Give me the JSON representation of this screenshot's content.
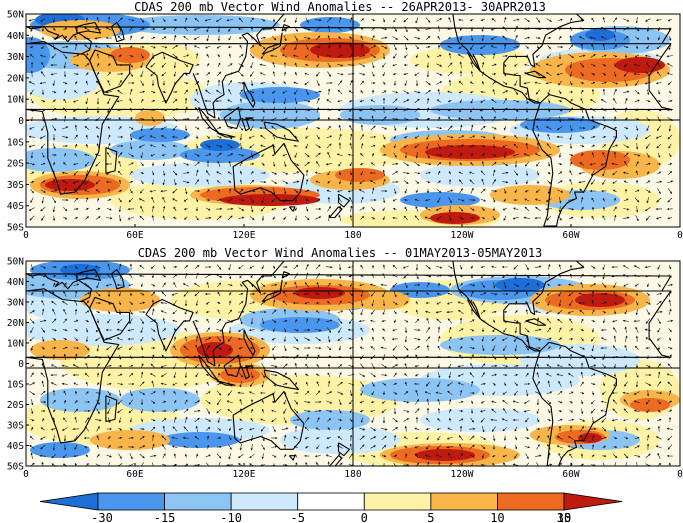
{
  "panels": [
    {
      "title": "CDAS 200 mb Vector Wind Anomalies -- 26APR2013- 30APR2013",
      "lat_labels": [
        "50N",
        "40N",
        "30N",
        "20N",
        "10N",
        "0",
        "10S",
        "20S",
        "30S",
        "40S",
        "50S"
      ],
      "lon_labels": [
        "0",
        "60E",
        "120E",
        "180",
        "120W",
        "60W",
        "0"
      ]
    },
    {
      "title": "CDAS 200 mb Vector Wind Anomalies -- 01MAY2013-05MAY2013",
      "lat_labels": [
        "50N",
        "40N",
        "30N",
        "20N",
        "10N",
        "0",
        "10S",
        "20S",
        "30S",
        "40S",
        "50S"
      ],
      "lon_labels": [
        "0",
        "60E",
        "120E",
        "180",
        "120W",
        "60W",
        "0"
      ]
    }
  ],
  "colorbar": {
    "labels": [
      "-30",
      "-15",
      "-10",
      "-5",
      "0",
      "5",
      "10",
      "15",
      "30"
    ],
    "colors": [
      "#1e6ed8",
      "#4a96ec",
      "#8cc4f4",
      "#cde9fb",
      "#ffffff",
      "#fdf2a6",
      "#f8b54a",
      "#ec6a22",
      "#bf1a10"
    ]
  }
}
